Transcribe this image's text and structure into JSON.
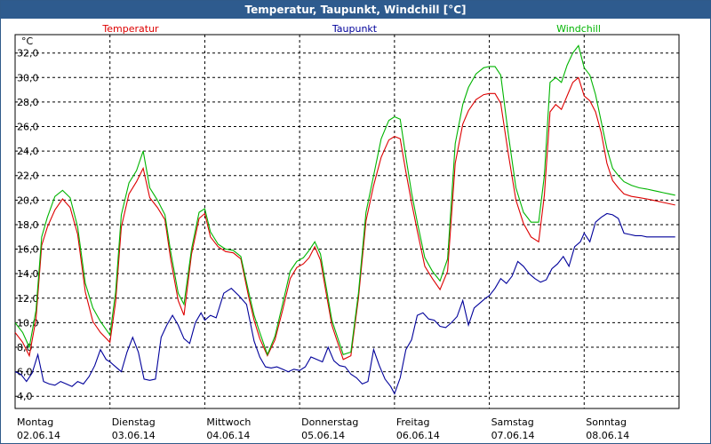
{
  "window": {
    "title": "Temperatur, Taupunkt, Windchill [°C]"
  },
  "chart_data": {
    "type": "line",
    "title": "Temperatur, Taupunkt, Windchill [°C]",
    "ylabel": "°C",
    "xlabel": "",
    "ylim": [
      3.0,
      33.5
    ],
    "xlim": [
      0,
      7
    ],
    "grid": true,
    "yticks": [
      4,
      6,
      8,
      10,
      12,
      14,
      16,
      18,
      20,
      22,
      24,
      26,
      28,
      30,
      32
    ],
    "ytick_labels": [
      "4,0",
      "6,0",
      "8,0",
      "10,0",
      "12,0",
      "14,0",
      "16,0",
      "18,0",
      "20,0",
      "22,0",
      "24,0",
      "26,0",
      "28,0",
      "30,0",
      "32,0"
    ],
    "days": [
      {
        "weekday": "Montag",
        "date": "02.06.14"
      },
      {
        "weekday": "Dienstag",
        "date": "03.06.14"
      },
      {
        "weekday": "Mittwoch",
        "date": "04.06.14"
      },
      {
        "weekday": "Donnerstag",
        "date": "05.06.14"
      },
      {
        "weekday": "Freitag",
        "date": "06.06.14"
      },
      {
        "weekday": "Samstag",
        "date": "07.06.14"
      },
      {
        "weekday": "Sonntag",
        "date": "08.06.14"
      }
    ],
    "series": [
      {
        "name": "Temperatur",
        "color": "#dd0000",
        "x": [
          0,
          0.08,
          0.15,
          0.22,
          0.28,
          0.34,
          0.42,
          0.5,
          0.58,
          0.66,
          0.74,
          0.82,
          0.9,
          1.0,
          1.06,
          1.12,
          1.2,
          1.28,
          1.35,
          1.42,
          1.5,
          1.58,
          1.64,
          1.72,
          1.78,
          1.86,
          1.94,
          2.0,
          2.06,
          2.14,
          2.22,
          2.3,
          2.38,
          2.46,
          2.52,
          2.58,
          2.66,
          2.74,
          2.82,
          2.9,
          2.97,
          3.04,
          3.1,
          3.16,
          3.22,
          3.28,
          3.34,
          3.4,
          3.46,
          3.54,
          3.62,
          3.7,
          3.78,
          3.86,
          3.94,
          4.0,
          4.06,
          4.12,
          4.18,
          4.24,
          4.32,
          4.4,
          4.48,
          4.56,
          4.64,
          4.72,
          4.78,
          4.86,
          4.94,
          5.0,
          5.06,
          5.12,
          5.2,
          5.28,
          5.36,
          5.44,
          5.52,
          5.58,
          5.64,
          5.7,
          5.76,
          5.82,
          5.88,
          5.94,
          6.0,
          6.06,
          6.12,
          6.18,
          6.24,
          6.3,
          6.36,
          6.42,
          6.5,
          6.58,
          6.66,
          6.72,
          6.78,
          6.84,
          6.9,
          6.96
        ],
        "values": [
          9.2,
          8.4,
          7.3,
          10.3,
          16.3,
          17.8,
          19.2,
          20.1,
          19.4,
          17.2,
          12.5,
          10.1,
          9.2,
          8.4,
          11.7,
          17.8,
          20.5,
          21.5,
          22.6,
          20.2,
          19.4,
          18.4,
          15.2,
          11.8,
          10.6,
          15.6,
          18.5,
          18.9,
          17.0,
          16.2,
          15.8,
          15.7,
          15.2,
          12.2,
          10.2,
          8.7,
          7.3,
          8.6,
          11.0,
          13.6,
          14.5,
          14.8,
          15.3,
          16.2,
          15.1,
          12.4,
          9.8,
          8.4,
          7.0,
          7.3,
          12.0,
          18.3,
          21.2,
          23.5,
          24.9,
          25.2,
          25.0,
          22.3,
          19.8,
          17.5,
          14.6,
          13.6,
          12.7,
          14.2,
          23.0,
          26.2,
          27.3,
          28.2,
          28.6,
          28.7,
          28.7,
          27.9,
          23.8,
          20.0,
          18.1,
          17.0,
          16.6,
          20.4,
          27.2,
          27.8,
          27.4,
          28.5,
          29.6,
          30.0,
          28.5,
          28.1,
          27.2,
          25.5,
          23.0,
          21.6,
          21.0,
          20.5,
          20.3,
          20.2,
          20.1,
          20.0,
          19.9,
          19.8,
          19.7,
          19.6
        ]
      },
      {
        "name": "Taupunkt",
        "color": "#00009a",
        "x": [
          0,
          0.06,
          0.12,
          0.18,
          0.24,
          0.3,
          0.36,
          0.42,
          0.48,
          0.54,
          0.6,
          0.66,
          0.72,
          0.78,
          0.84,
          0.9,
          0.96,
          1.0,
          1.06,
          1.12,
          1.18,
          1.24,
          1.3,
          1.36,
          1.42,
          1.48,
          1.54,
          1.6,
          1.66,
          1.72,
          1.78,
          1.84,
          1.9,
          1.96,
          2.0,
          2.06,
          2.12,
          2.2,
          2.28,
          2.36,
          2.44,
          2.52,
          2.58,
          2.64,
          2.7,
          2.76,
          2.82,
          2.88,
          2.94,
          3.0,
          3.06,
          3.12,
          3.18,
          3.24,
          3.3,
          3.36,
          3.42,
          3.48,
          3.54,
          3.6,
          3.66,
          3.72,
          3.78,
          3.84,
          3.9,
          3.96,
          4.0,
          4.06,
          4.12,
          4.18,
          4.24,
          4.3,
          4.36,
          4.42,
          4.48,
          4.54,
          4.6,
          4.66,
          4.72,
          4.78,
          4.84,
          4.9,
          4.96,
          5.0,
          5.06,
          5.12,
          5.18,
          5.24,
          5.3,
          5.36,
          5.42,
          5.48,
          5.54,
          5.6,
          5.66,
          5.72,
          5.78,
          5.84,
          5.9,
          5.96,
          6.0,
          6.06,
          6.12,
          6.18,
          6.24,
          6.3,
          6.36,
          6.42,
          6.48,
          6.54,
          6.6,
          6.66,
          6.72,
          6.78,
          6.84,
          6.9,
          6.96
        ],
        "values": [
          6.0,
          5.8,
          5.2,
          5.9,
          7.4,
          5.2,
          5.0,
          4.9,
          5.2,
          5.0,
          4.8,
          5.2,
          5.0,
          5.6,
          6.5,
          7.8,
          7.0,
          6.8,
          6.4,
          6.0,
          7.6,
          8.8,
          7.6,
          5.4,
          5.3,
          5.4,
          8.8,
          9.8,
          10.6,
          9.8,
          8.7,
          8.3,
          10.0,
          10.8,
          10.2,
          10.6,
          10.4,
          12.4,
          12.8,
          12.2,
          11.5,
          8.5,
          7.2,
          6.4,
          6.3,
          6.4,
          6.2,
          6.0,
          6.2,
          6.1,
          6.4,
          7.2,
          7.0,
          6.8,
          8.0,
          6.9,
          6.5,
          6.4,
          5.8,
          5.5,
          5.0,
          5.2,
          7.8,
          6.5,
          5.4,
          4.8,
          4.2,
          5.5,
          7.8,
          8.6,
          10.6,
          10.8,
          10.3,
          10.2,
          9.7,
          9.6,
          10.0,
          10.5,
          11.8,
          9.8,
          11.2,
          11.6,
          12.0,
          12.2,
          12.8,
          13.6,
          13.2,
          13.8,
          15.0,
          14.6,
          14.0,
          13.6,
          13.3,
          13.5,
          14.4,
          14.8,
          15.4,
          14.6,
          16.2,
          16.6,
          17.3,
          16.6,
          18.2,
          18.6,
          18.9,
          18.8,
          18.5,
          17.3,
          17.2,
          17.1,
          17.1,
          17.0,
          17.0,
          17.0,
          17.0,
          17.0,
          17.0
        ]
      },
      {
        "name": "Windchill",
        "color": "#00b400",
        "x": [
          0,
          0.08,
          0.15,
          0.22,
          0.28,
          0.34,
          0.42,
          0.5,
          0.58,
          0.66,
          0.74,
          0.82,
          0.9,
          1.0,
          1.06,
          1.12,
          1.2,
          1.28,
          1.35,
          1.42,
          1.5,
          1.58,
          1.64,
          1.72,
          1.78,
          1.86,
          1.94,
          2.0,
          2.06,
          2.14,
          2.22,
          2.3,
          2.38,
          2.46,
          2.52,
          2.58,
          2.66,
          2.74,
          2.82,
          2.9,
          2.97,
          3.04,
          3.1,
          3.16,
          3.22,
          3.28,
          3.34,
          3.4,
          3.46,
          3.54,
          3.62,
          3.7,
          3.78,
          3.86,
          3.94,
          4.0,
          4.06,
          4.12,
          4.18,
          4.24,
          4.32,
          4.4,
          4.48,
          4.56,
          4.64,
          4.72,
          4.78,
          4.86,
          4.94,
          5.0,
          5.06,
          5.12,
          5.2,
          5.28,
          5.36,
          5.44,
          5.52,
          5.58,
          5.64,
          5.7,
          5.76,
          5.82,
          5.88,
          5.94,
          6.0,
          6.06,
          6.12,
          6.18,
          6.24,
          6.3,
          6.36,
          6.42,
          6.5,
          6.58,
          6.66,
          6.72,
          6.78,
          6.84,
          6.9,
          6.96
        ],
        "values": [
          10.0,
          9.2,
          8.0,
          11.0,
          17.0,
          18.6,
          20.3,
          20.8,
          20.2,
          17.8,
          13.2,
          11.2,
          10.1,
          9.0,
          12.5,
          18.8,
          21.4,
          22.4,
          24.0,
          21.0,
          20.0,
          18.8,
          15.8,
          12.4,
          11.5,
          16.0,
          19.0,
          19.3,
          17.4,
          16.4,
          16.0,
          15.9,
          15.4,
          12.6,
          10.6,
          9.2,
          7.4,
          8.9,
          11.5,
          14.2,
          15.0,
          15.3,
          15.9,
          16.6,
          15.6,
          12.9,
          10.2,
          8.8,
          7.4,
          7.6,
          12.4,
          19.0,
          22.0,
          25.0,
          26.5,
          26.8,
          26.6,
          23.5,
          20.6,
          18.2,
          15.3,
          14.2,
          13.4,
          15.2,
          24.6,
          27.8,
          29.2,
          30.3,
          30.8,
          30.9,
          30.9,
          30.2,
          25.4,
          21.0,
          19.0,
          18.2,
          18.2,
          22.0,
          29.6,
          30.0,
          29.6,
          31.0,
          32.0,
          32.6,
          30.8,
          30.2,
          28.6,
          26.4,
          24.2,
          22.6,
          22.0,
          21.5,
          21.2,
          21.0,
          20.9,
          20.8,
          20.7,
          20.6,
          20.5,
          20.4
        ]
      }
    ]
  }
}
